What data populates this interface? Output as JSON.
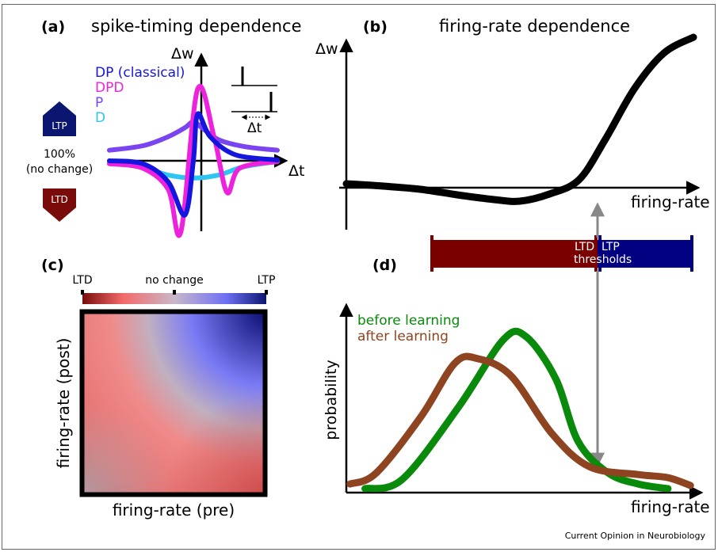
{
  "panels": {
    "a": {
      "label": "(a)",
      "title": "spike-timing dependence"
    },
    "b": {
      "label": "(b)",
      "title": "firing-rate dependence"
    },
    "c": {
      "label": "(c)"
    },
    "d": {
      "label": "(d)"
    }
  },
  "side_legend": {
    "ltp": "LTP",
    "no_change_1": "100%",
    "no_change_2": "(no change)",
    "ltd": "LTD",
    "ltp_color": "#0b1670",
    "ltd_color": "#7a0b0b"
  },
  "inset": {
    "dt_label": "Δt"
  },
  "thresholds": {
    "ltd": "LTD",
    "ltp": "LTP",
    "label": "thresholds",
    "ltd_color": "#7a0000",
    "ltp_color": "#000080"
  },
  "colorbar": {
    "left": "LTD",
    "mid": "no change",
    "right": "LTP"
  },
  "footer": {
    "credit": "Current Opinion in Neurobiology"
  },
  "chart_data": [
    {
      "panel": "a",
      "type": "line",
      "xlabel": "Δt",
      "ylabel": "Δw",
      "series": [
        {
          "name": "DP (classical)",
          "color": "#1515e0",
          "points": [
            [
              -1,
              0
            ],
            [
              -0.6,
              -0.04
            ],
            [
              -0.3,
              -0.28
            ],
            [
              -0.1,
              -0.72
            ],
            [
              0,
              0
            ],
            [
              0.05,
              0.62
            ],
            [
              0.2,
              0.32
            ],
            [
              0.5,
              0.08
            ],
            [
              1,
              0.01
            ]
          ]
        },
        {
          "name": "DPD",
          "color": "#ee22dd",
          "points": [
            [
              -1,
              -0.04
            ],
            [
              -0.6,
              -0.1
            ],
            [
              -0.3,
              -0.38
            ],
            [
              -0.15,
              -0.95
            ],
            [
              0.05,
              0.95
            ],
            [
              0.25,
              0.3
            ],
            [
              0.4,
              -0.42
            ],
            [
              0.55,
              -0.1
            ],
            [
              1,
              -0.01
            ]
          ]
        },
        {
          "name": "P",
          "color": "#7a44f0",
          "points": [
            [
              -1,
              0.14
            ],
            [
              -0.6,
              0.2
            ],
            [
              -0.3,
              0.32
            ],
            [
              -0.1,
              0.44
            ],
            [
              0,
              0.52
            ],
            [
              0.1,
              0.44
            ],
            [
              0.3,
              0.28
            ],
            [
              0.6,
              0.19
            ],
            [
              1,
              0.14
            ]
          ]
        },
        {
          "name": "D",
          "color": "#2ec5f0",
          "points": [
            [
              -1,
              -0.02
            ],
            [
              -0.6,
              -0.09
            ],
            [
              -0.3,
              -0.19
            ],
            [
              0,
              -0.23
            ],
            [
              0.3,
              -0.19
            ],
            [
              0.6,
              -0.08
            ],
            [
              1,
              -0.01
            ]
          ]
        }
      ]
    },
    {
      "panel": "b",
      "type": "line",
      "xlabel": "firing-rate",
      "ylabel": "Δw",
      "series": [
        {
          "color": "#000000",
          "points": [
            [
              0,
              0.05
            ],
            [
              0.1,
              0.02
            ],
            [
              0.2,
              -0.02
            ],
            [
              0.3,
              -0.09
            ],
            [
              0.4,
              -0.15
            ],
            [
              0.47,
              -0.17
            ],
            [
              0.55,
              -0.08
            ],
            [
              0.63,
              0.1
            ],
            [
              0.7,
              0.6
            ],
            [
              0.78,
              1.25
            ],
            [
              0.86,
              1.7
            ],
            [
              0.94,
              1.9
            ]
          ]
        }
      ]
    },
    {
      "panel": "c",
      "type": "heatmap",
      "xlabel": "firing-rate (pre)",
      "ylabel": "firing-rate (post)"
    },
    {
      "panel": "d",
      "type": "line",
      "xlabel": "firing-rate",
      "ylabel": "probability",
      "series": [
        {
          "name": "before learning",
          "color": "#0a8a0a",
          "points": [
            [
              0.05,
              0.0
            ],
            [
              0.15,
              0.06
            ],
            [
              0.3,
              0.52
            ],
            [
              0.42,
              0.95
            ],
            [
              0.48,
              0.97
            ],
            [
              0.56,
              0.7
            ],
            [
              0.62,
              0.3
            ],
            [
              0.7,
              0.1
            ],
            [
              0.78,
              0.03
            ],
            [
              0.86,
              0.0
            ]
          ]
        },
        {
          "name": "after learning",
          "color": "#8e4420",
          "points": [
            [
              0.01,
              0.03
            ],
            [
              0.08,
              0.1
            ],
            [
              0.2,
              0.46
            ],
            [
              0.29,
              0.8
            ],
            [
              0.35,
              0.83
            ],
            [
              0.44,
              0.72
            ],
            [
              0.55,
              0.35
            ],
            [
              0.65,
              0.14
            ],
            [
              0.78,
              0.09
            ],
            [
              0.86,
              0.07
            ],
            [
              0.92,
              0.02
            ]
          ]
        }
      ]
    }
  ]
}
